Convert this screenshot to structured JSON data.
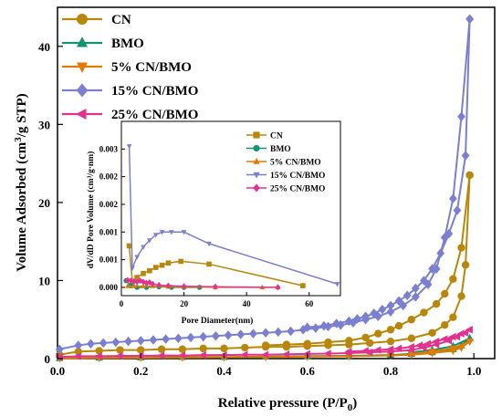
{
  "chart_data": [
    {
      "type": "line",
      "xlabel": "Relative pressure (P/P",
      "xlabel_sub": "0",
      "xlabel_end": ")",
      "ylabel": "Volume Adsorbed (cm",
      "ylabel_sup": "3",
      "ylabel_end": "/g STP)",
      "xlim": [
        0.0,
        1.05
      ],
      "ylim": [
        0,
        45
      ],
      "xticks": [
        "0.0",
        "0.2",
        "0.4",
        "0.6",
        "0.8",
        "1.0"
      ],
      "xtick_values": [
        0.0,
        0.2,
        0.4,
        0.6,
        0.8,
        1.0
      ],
      "yticks": [
        "0",
        "10",
        "20",
        "30",
        "40"
      ],
      "ytick_values": [
        0,
        10,
        20,
        30,
        40
      ],
      "legend_position": "top-left",
      "series": [
        {
          "name": "CN",
          "color": "#b8860b",
          "marker": "circle",
          "adsorption": [
            [
              0.005,
              0.5
            ],
            [
              0.05,
              0.9
            ],
            [
              0.1,
              1.0
            ],
            [
              0.15,
              1.1
            ],
            [
              0.2,
              1.1
            ],
            [
              0.25,
              1.2
            ],
            [
              0.3,
              1.2
            ],
            [
              0.35,
              1.3
            ],
            [
              0.4,
              1.3
            ],
            [
              0.45,
              1.4
            ],
            [
              0.5,
              1.5
            ],
            [
              0.55,
              1.5
            ],
            [
              0.6,
              1.6
            ],
            [
              0.65,
              1.7
            ],
            [
              0.7,
              1.8
            ],
            [
              0.75,
              2.0
            ],
            [
              0.8,
              2.2
            ],
            [
              0.85,
              2.6
            ],
            [
              0.9,
              3.3
            ],
            [
              0.93,
              4.3
            ],
            [
              0.95,
              5.3
            ],
            [
              0.97,
              8.0
            ],
            [
              0.98,
              12.0
            ],
            [
              0.99,
              23.5
            ]
          ],
          "desorption": [
            [
              0.99,
              23.5
            ],
            [
              0.97,
              14.2
            ],
            [
              0.95,
              10.2
            ],
            [
              0.93,
              8.3
            ],
            [
              0.91,
              7.0
            ],
            [
              0.88,
              5.9
            ],
            [
              0.85,
              5.0
            ],
            [
              0.82,
              4.2
            ],
            [
              0.8,
              3.7
            ],
            [
              0.77,
              3.2
            ],
            [
              0.74,
              2.7
            ],
            [
              0.7,
              2.3
            ],
            [
              0.65,
              2.1
            ],
            [
              0.6,
              1.9
            ],
            [
              0.55,
              1.8
            ],
            [
              0.5,
              1.7
            ]
          ]
        },
        {
          "name": "BMO",
          "color": "#159270",
          "marker": "triangle-up",
          "adsorption": [
            [
              0.005,
              0.05
            ],
            [
              0.1,
              0.1
            ],
            [
              0.2,
              0.15
            ],
            [
              0.3,
              0.2
            ],
            [
              0.4,
              0.2
            ],
            [
              0.5,
              0.25
            ],
            [
              0.6,
              0.3
            ],
            [
              0.7,
              0.35
            ],
            [
              0.8,
              0.45
            ],
            [
              0.85,
              0.6
            ],
            [
              0.9,
              0.8
            ],
            [
              0.95,
              1.2
            ],
            [
              0.97,
              1.7
            ],
            [
              0.99,
              2.6
            ]
          ],
          "desorption": [
            [
              0.99,
              2.6
            ],
            [
              0.95,
              1.6
            ],
            [
              0.9,
              1.1
            ],
            [
              0.85,
              0.8
            ]
          ]
        },
        {
          "name": "5% CN/BMO",
          "color": "#e07b00",
          "marker": "triangle-down",
          "adsorption": [
            [
              0.005,
              0.05
            ],
            [
              0.1,
              0.1
            ],
            [
              0.2,
              0.12
            ],
            [
              0.3,
              0.15
            ],
            [
              0.4,
              0.18
            ],
            [
              0.5,
              0.2
            ],
            [
              0.6,
              0.25
            ],
            [
              0.7,
              0.3
            ],
            [
              0.8,
              0.4
            ],
            [
              0.85,
              0.5
            ],
            [
              0.9,
              0.7
            ],
            [
              0.95,
              1.0
            ],
            [
              0.97,
              1.4
            ],
            [
              0.99,
              2.2
            ]
          ],
          "desorption": [
            [
              0.99,
              2.2
            ],
            [
              0.95,
              1.3
            ],
            [
              0.9,
              0.9
            ],
            [
              0.85,
              0.6
            ]
          ]
        },
        {
          "name": "15% CN/BMO",
          "color": "#7b7fcf",
          "marker": "diamond",
          "adsorption": [
            [
              0.005,
              1.2
            ],
            [
              0.05,
              1.7
            ],
            [
              0.08,
              1.9
            ],
            [
              0.11,
              2.0
            ],
            [
              0.14,
              2.1
            ],
            [
              0.17,
              2.2
            ],
            [
              0.2,
              2.3
            ],
            [
              0.23,
              2.4
            ],
            [
              0.26,
              2.5
            ],
            [
              0.29,
              2.6
            ],
            [
              0.32,
              2.7
            ],
            [
              0.35,
              2.8
            ],
            [
              0.38,
              2.9
            ],
            [
              0.41,
              3.0
            ],
            [
              0.44,
              3.1
            ],
            [
              0.47,
              3.2
            ],
            [
              0.5,
              3.3
            ],
            [
              0.53,
              3.4
            ],
            [
              0.56,
              3.5
            ],
            [
              0.59,
              3.7
            ],
            [
              0.62,
              3.9
            ],
            [
              0.65,
              4.1
            ],
            [
              0.68,
              4.3
            ],
            [
              0.71,
              4.6
            ],
            [
              0.74,
              5.0
            ],
            [
              0.77,
              5.4
            ],
            [
              0.8,
              6.0
            ],
            [
              0.83,
              6.8
            ],
            [
              0.86,
              7.9
            ],
            [
              0.89,
              9.5
            ],
            [
              0.91,
              11.5
            ],
            [
              0.93,
              15.5
            ],
            [
              0.95,
              20.5
            ],
            [
              0.97,
              31.0
            ],
            [
              0.99,
              43.5
            ]
          ],
          "desorption": [
            [
              0.99,
              43.5
            ],
            [
              0.98,
              26.0
            ],
            [
              0.96,
              19.0
            ],
            [
              0.94,
              16.0
            ],
            [
              0.92,
              13.5
            ],
            [
              0.9,
              11.5
            ],
            [
              0.88,
              10.0
            ],
            [
              0.86,
              9.0
            ],
            [
              0.84,
              8.1
            ],
            [
              0.82,
              7.4
            ],
            [
              0.8,
              6.8
            ],
            [
              0.78,
              6.3
            ],
            [
              0.76,
              5.8
            ],
            [
              0.74,
              5.4
            ],
            [
              0.72,
              5.1
            ],
            [
              0.7,
              4.8
            ],
            [
              0.67,
              4.5
            ],
            [
              0.64,
              4.2
            ],
            [
              0.6,
              4.0
            ]
          ]
        },
        {
          "name": "25% CN/BMO",
          "color": "#e0338f",
          "marker": "triangle-left",
          "adsorption": [
            [
              0.005,
              0.2
            ],
            [
              0.05,
              0.3
            ],
            [
              0.1,
              0.3
            ],
            [
              0.15,
              0.35
            ],
            [
              0.2,
              0.35
            ],
            [
              0.25,
              0.4
            ],
            [
              0.3,
              0.4
            ],
            [
              0.35,
              0.45
            ],
            [
              0.4,
              0.45
            ],
            [
              0.45,
              0.5
            ],
            [
              0.5,
              0.5
            ],
            [
              0.55,
              0.55
            ],
            [
              0.6,
              0.6
            ],
            [
              0.65,
              0.65
            ],
            [
              0.7,
              0.7
            ],
            [
              0.75,
              0.8
            ],
            [
              0.8,
              0.9
            ],
            [
              0.85,
              1.1
            ],
            [
              0.88,
              1.4
            ],
            [
              0.91,
              1.8
            ],
            [
              0.94,
              2.3
            ],
            [
              0.96,
              2.8
            ],
            [
              0.98,
              3.3
            ],
            [
              0.99,
              3.7
            ]
          ],
          "desorption": [
            [
              0.99,
              3.7
            ],
            [
              0.97,
              3.2
            ],
            [
              0.95,
              2.8
            ],
            [
              0.93,
              2.5
            ],
            [
              0.91,
              2.2
            ],
            [
              0.89,
              1.9
            ],
            [
              0.87,
              1.7
            ],
            [
              0.85,
              1.5
            ],
            [
              0.82,
              1.3
            ],
            [
              0.8,
              1.2
            ],
            [
              0.77,
              1.1
            ],
            [
              0.74,
              1.0
            ],
            [
              0.7,
              0.9
            ]
          ]
        }
      ]
    },
    {
      "type": "line",
      "xlabel": "Pore Diameter(nm)",
      "ylabel": "dV/dD Pore Volume (cm³/g·nm)",
      "xlim": [
        0,
        70
      ],
      "ylim": [
        -0.00015,
        0.003
      ],
      "xticks": [
        "0",
        "20",
        "40",
        "60"
      ],
      "xtick_values": [
        0,
        20,
        40,
        60
      ],
      "yticks": [
        "0.000",
        "0.001",
        "0.001",
        "0.002",
        "0.002",
        "0.003"
      ],
      "ytick_values": [
        0,
        0.0005,
        0.001,
        0.0015,
        0.002,
        0.0025
      ],
      "legend_position": "top-right",
      "series": [
        {
          "name": "CN",
          "color": "#b8860b",
          "marker": "square",
          "points": [
            [
              2.5,
              0.00075
            ],
            [
              3.5,
              0.0001
            ],
            [
              5,
              0.00018
            ],
            [
              7,
              0.00025
            ],
            [
              9,
              0.0003
            ],
            [
              11,
              0.00036
            ],
            [
              13,
              0.0004
            ],
            [
              15,
              0.00044
            ],
            [
              19,
              0.00047
            ],
            [
              28,
              0.00042
            ],
            [
              58,
              3e-05
            ]
          ]
        },
        {
          "name": "BMO",
          "color": "#159270",
          "marker": "circle",
          "points": [
            [
              1.5,
              0.00012
            ],
            [
              3,
              3e-05
            ],
            [
              5,
              0.0
            ],
            [
              8,
              0.0
            ],
            [
              12,
              1e-05
            ],
            [
              16,
              0.0
            ],
            [
              20,
              0.0
            ],
            [
              25,
              0.0
            ]
          ]
        },
        {
          "name": "5% CN/BMO",
          "color": "#e07b00",
          "marker": "triangle-up",
          "points": [
            [
              2,
              2e-05
            ],
            [
              4,
              2e-05
            ],
            [
              7,
              2e-05
            ],
            [
              10,
              2e-05
            ],
            [
              15,
              1e-05
            ],
            [
              20,
              1e-05
            ],
            [
              30,
              0.0
            ],
            [
              45,
              0.0
            ],
            [
              50,
              0.0
            ]
          ]
        },
        {
          "name": "15% CN/BMO",
          "color": "#7b7fcf",
          "marker": "triangle-down",
          "points": [
            [
              2.5,
              0.00255
            ],
            [
              3.5,
              0.00035
            ],
            [
              5,
              0.00055
            ],
            [
              7,
              0.00073
            ],
            [
              9,
              0.00085
            ],
            [
              11,
              0.00095
            ],
            [
              13,
              0.001
            ],
            [
              16,
              0.001
            ],
            [
              20,
              0.001
            ],
            [
              28,
              0.00079
            ],
            [
              69,
              6e-05
            ]
          ]
        },
        {
          "name": "25% CN/BMO",
          "color": "#e0338f",
          "marker": "diamond",
          "points": [
            [
              2,
              0.00013
            ],
            [
              3,
              0.00012
            ],
            [
              4,
              0.00011
            ],
            [
              5,
              0.0001
            ],
            [
              6,
              0.00012
            ],
            [
              7,
              0.0001
            ],
            [
              8,
              8e-05
            ],
            [
              9,
              9e-05
            ],
            [
              10,
              6e-05
            ],
            [
              12,
              4e-05
            ],
            [
              15,
              3e-05
            ],
            [
              20,
              2e-05
            ],
            [
              30,
              1e-05
            ],
            [
              50,
              0.0
            ]
          ]
        }
      ]
    }
  ]
}
